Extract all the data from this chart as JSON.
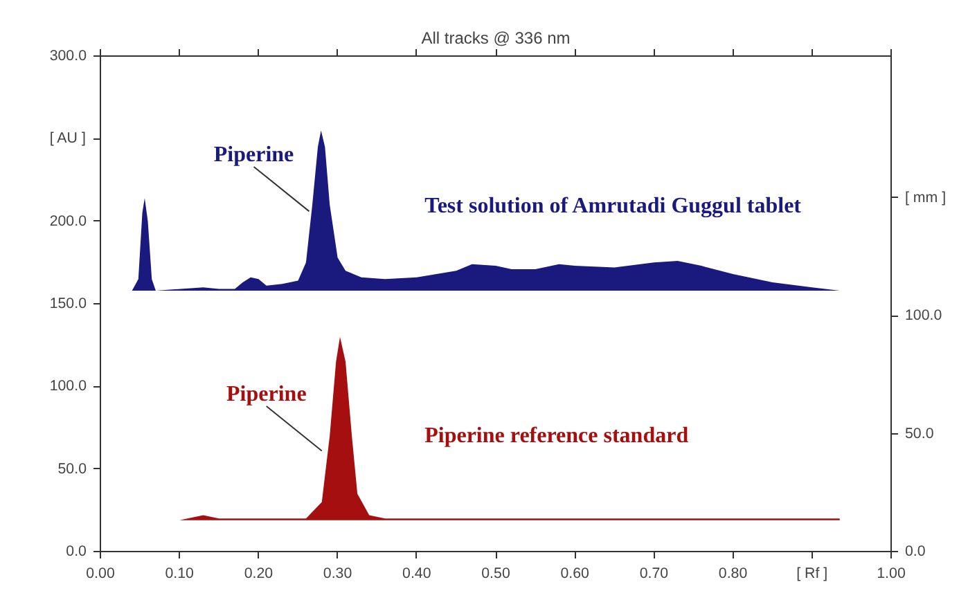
{
  "chart_data": {
    "type": "area",
    "title": "All tracks @ 336 nm",
    "xlim": [
      0,
      1
    ],
    "xticks": [
      {
        "value": 0,
        "label": "0.00"
      },
      {
        "value": 0.1,
        "label": "0.10"
      },
      {
        "value": 0.2,
        "label": "0.20"
      },
      {
        "value": 0.3,
        "label": "0.30"
      },
      {
        "value": 0.4,
        "label": "0.40"
      },
      {
        "value": 0.5,
        "label": "0.50"
      },
      {
        "value": 0.6,
        "label": "0.60"
      },
      {
        "value": 0.7,
        "label": "0.70"
      },
      {
        "value": 0.8,
        "label": "0.80"
      },
      {
        "value": 0.9,
        "label": "[ Rf ]"
      },
      {
        "value": 1,
        "label": "1.00"
      }
    ],
    "ylim": [
      0,
      300
    ],
    "yticks": [
      {
        "value": 0,
        "label": "0.0"
      },
      {
        "value": 50,
        "label": "50.0"
      },
      {
        "value": 100,
        "label": "100.0"
      },
      {
        "value": 150,
        "label": "150.0"
      },
      {
        "value": 200,
        "label": "200.0"
      },
      {
        "value": 250,
        "label": "[ AU ]"
      },
      {
        "value": 300,
        "label": "300.0"
      }
    ],
    "y2lim": [
      0,
      210
    ],
    "y2ticks": [
      {
        "value": 0,
        "label": "0.0"
      },
      {
        "value": 50,
        "label": "50.0"
      },
      {
        "value": 100,
        "label": "100.0"
      },
      {
        "value": 150,
        "label": "[ mm ]"
      }
    ],
    "grid": false,
    "series": [
      {
        "name": "Test solution of Amrutadi Guggul tablet",
        "color": "#1a1a7e",
        "x": [
          0.0,
          0.04,
          0.048,
          0.053,
          0.056,
          0.06,
          0.065,
          0.07,
          0.13,
          0.15,
          0.17,
          0.18,
          0.19,
          0.2,
          0.21,
          0.23,
          0.25,
          0.26,
          0.268,
          0.275,
          0.279,
          0.284,
          0.29,
          0.3,
          0.31,
          0.33,
          0.36,
          0.4,
          0.45,
          0.47,
          0.5,
          0.52,
          0.55,
          0.58,
          0.6,
          0.65,
          0.7,
          0.73,
          0.76,
          0.8,
          0.85,
          0.9,
          0.935
        ],
        "values": [
          158,
          158,
          165,
          205,
          214,
          200,
          165,
          158,
          160,
          159,
          159,
          163,
          166,
          165,
          161,
          162,
          164,
          175,
          210,
          245,
          255,
          245,
          210,
          178,
          170,
          166,
          165,
          166,
          170,
          174,
          173,
          171,
          171,
          174,
          173,
          172,
          175,
          176,
          173,
          168,
          163,
          160,
          158
        ]
      },
      {
        "name": "Piperine reference standard",
        "color": "#a50f0f",
        "x": [
          0.0,
          0.1,
          0.11,
          0.13,
          0.15,
          0.26,
          0.28,
          0.29,
          0.298,
          0.303,
          0.31,
          0.318,
          0.325,
          0.34,
          0.36,
          0.935
        ],
        "values": [
          19,
          19,
          20,
          22,
          20,
          20,
          30,
          70,
          115,
          130,
          115,
          70,
          35,
          22,
          20,
          20
        ]
      }
    ],
    "annotations": [
      {
        "text": "Piperine",
        "x": 0.264,
        "y": 206
      },
      {
        "text": "Piperine",
        "x": 0.28,
        "y": 61
      }
    ]
  }
}
